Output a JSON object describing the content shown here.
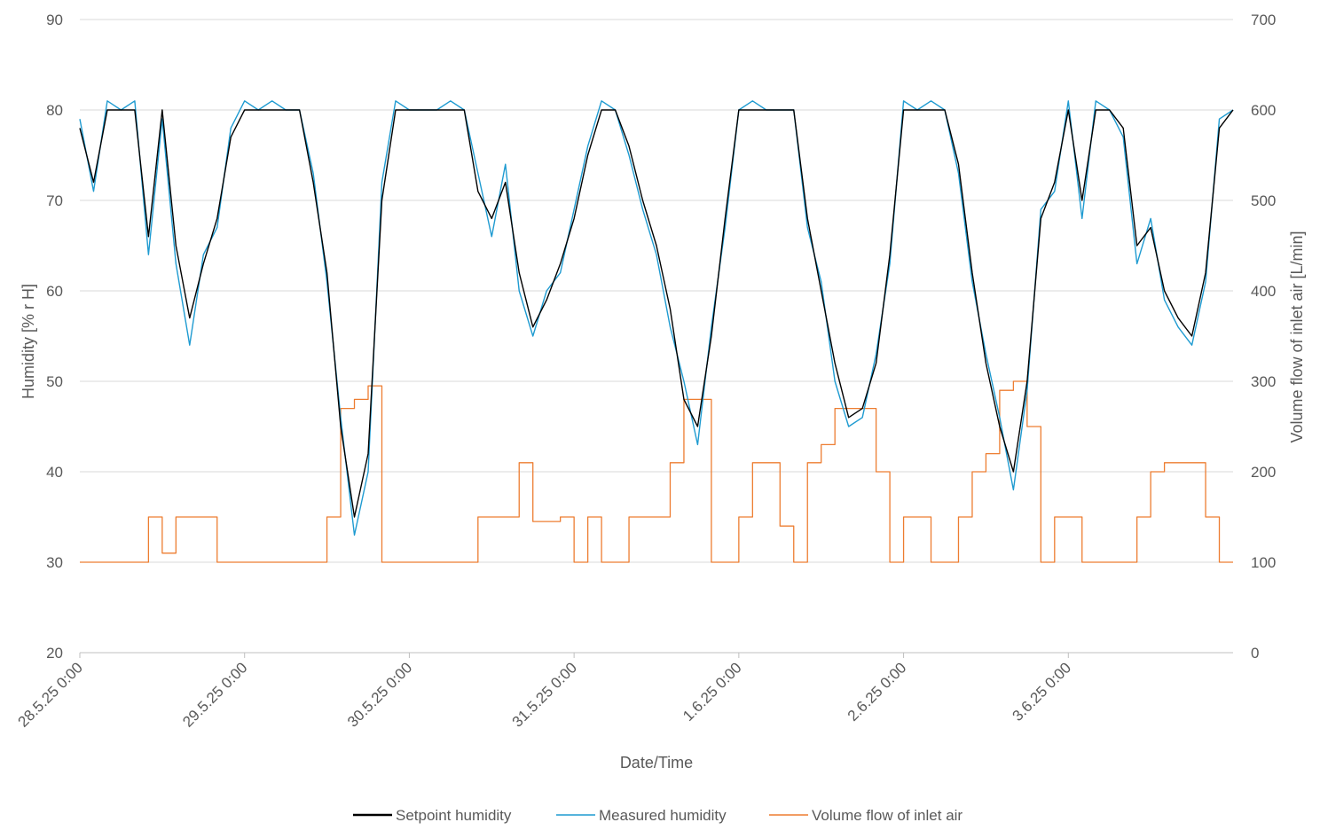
{
  "chart_data": {
    "type": "line",
    "title": "",
    "xlabel": "Date/Time",
    "ylabel": "Humidity [% r H]",
    "y2label": "Volume flow of inlet air [L/min]",
    "ylim": [
      20,
      90
    ],
    "y2lim": [
      0,
      700
    ],
    "yticks": [
      "20",
      "30",
      "40",
      "50",
      "60",
      "70",
      "80",
      "90"
    ],
    "y2ticks": [
      "0",
      "100",
      "200",
      "300",
      "400",
      "500",
      "600",
      "700"
    ],
    "xticks": [
      "28.5.25 0:00",
      "29.5.25 0:00",
      "30.5.25 0:00",
      "31.5.25 0:00",
      "1.6.25 0:00",
      "2.6.25 0:00",
      "3.6.25 0:00"
    ],
    "x_step_hours": 2,
    "x_days": 7,
    "grid": true,
    "legend_position": "bottom",
    "series": [
      {
        "name": "Setpoint humidity",
        "axis": "left",
        "color": "#000000",
        "values": [
          78,
          72,
          80,
          80,
          80,
          66,
          80,
          65,
          57,
          63,
          68,
          77,
          80,
          80,
          80,
          80,
          80,
          72,
          62,
          45,
          35,
          42,
          70,
          80,
          80,
          80,
          80,
          80,
          80,
          71,
          68,
          72,
          62,
          56,
          59,
          63,
          68,
          75,
          80,
          80,
          76,
          70,
          65,
          58,
          48,
          45,
          55,
          68,
          80,
          80,
          80,
          80,
          80,
          68,
          60,
          52,
          46,
          47,
          52,
          64,
          80,
          80,
          80,
          80,
          74,
          62,
          52,
          45,
          40,
          50,
          68,
          72,
          80,
          70,
          80,
          80,
          78,
          65,
          67,
          60,
          57,
          55,
          62,
          78,
          80
        ]
      },
      {
        "name": "Measured humidity",
        "axis": "left",
        "color": "#1f9bd1",
        "values": [
          79,
          71,
          81,
          80,
          81,
          64,
          79,
          63,
          54,
          64,
          67,
          78,
          81,
          80,
          81,
          80,
          80,
          73,
          61,
          46,
          33,
          40,
          72,
          81,
          80,
          80,
          80,
          81,
          80,
          73,
          66,
          74,
          60,
          55,
          60,
          62,
          69,
          76,
          81,
          80,
          75,
          69,
          64,
          56,
          50,
          43,
          56,
          67,
          80,
          81,
          80,
          80,
          80,
          67,
          61,
          50,
          45,
          46,
          53,
          63,
          81,
          80,
          81,
          80,
          73,
          61,
          53,
          46,
          38,
          49,
          69,
          71,
          81,
          68,
          81,
          80,
          77,
          63,
          68,
          59,
          56,
          54,
          61,
          79,
          80
        ]
      },
      {
        "name": "Volume flow of inlet air",
        "axis": "right",
        "color": "#ed7d31",
        "step": true,
        "values": [
          100,
          100,
          100,
          100,
          100,
          150,
          110,
          150,
          150,
          150,
          100,
          100,
          100,
          100,
          100,
          100,
          100,
          100,
          150,
          270,
          280,
          295,
          100,
          100,
          100,
          100,
          100,
          100,
          100,
          150,
          150,
          150,
          210,
          145,
          145,
          150,
          100,
          150,
          100,
          100,
          150,
          150,
          150,
          210,
          280,
          280,
          100,
          100,
          150,
          210,
          210,
          140,
          100,
          210,
          230,
          270,
          270,
          270,
          200,
          100,
          150,
          150,
          100,
          100,
          150,
          200,
          220,
          290,
          300,
          250,
          100,
          150,
          150,
          100,
          100,
          100,
          100,
          150,
          200,
          210,
          210,
          210,
          150,
          100,
          100
        ]
      }
    ]
  }
}
